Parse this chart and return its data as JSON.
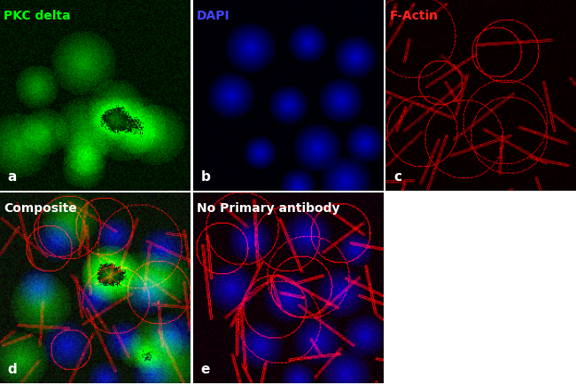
{
  "panels": [
    {
      "label": "a",
      "title": "PKC delta",
      "title_color": "#00ff00",
      "row": 0,
      "col": 0,
      "bg": "black",
      "channel": "green"
    },
    {
      "label": "b",
      "title": "DAPI",
      "title_color": "#4444ff",
      "row": 0,
      "col": 1,
      "bg": "black",
      "channel": "blue"
    },
    {
      "label": "c",
      "title": "F-Actin",
      "title_color": "#ff2222",
      "row": 0,
      "col": 2,
      "bg": "black",
      "channel": "red"
    },
    {
      "label": "d",
      "title": "Composite",
      "title_color": "#ffffff",
      "row": 1,
      "col": 0,
      "bg": "black",
      "channel": "composite"
    },
    {
      "label": "e",
      "title": "No Primary antibody",
      "title_color": "#ffffff",
      "row": 1,
      "col": 1,
      "bg": "black",
      "channel": "no_primary"
    }
  ],
  "figure_bg": "#ffffff",
  "label_color": "#ffffff",
  "label_fontsize": 11,
  "title_fontsize": 10,
  "n_cols": 3,
  "n_rows": 2
}
